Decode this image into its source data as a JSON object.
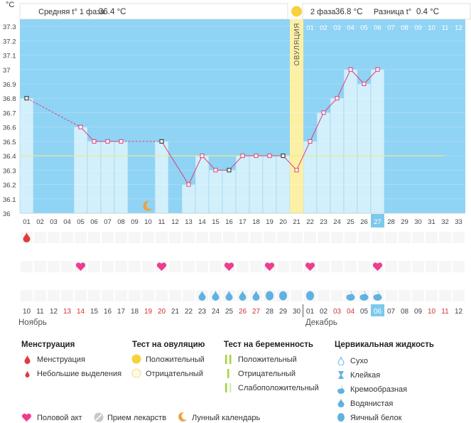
{
  "chart_data": {
    "type": "line",
    "title": "",
    "ylabel": "°C",
    "ylim": [
      36.0,
      37.35
    ],
    "y_ticks": [
      "37.3",
      "37.2",
      "37.1",
      "37",
      "36.9",
      "36.8",
      "36.7",
      "36.6",
      "36.5",
      "36.4",
      "36.3",
      "36.2",
      "36.1",
      "36"
    ],
    "y_tick_values": [
      37.3,
      37.2,
      37.1,
      37.0,
      36.9,
      36.8,
      36.7,
      36.6,
      36.5,
      36.4,
      36.3,
      36.2,
      36.1,
      36.0
    ],
    "cycle_days": [
      "01",
      "02",
      "03",
      "04",
      "05",
      "06",
      "07",
      "08",
      "09",
      "10",
      "11",
      "12",
      "13",
      "14",
      "15",
      "16",
      "17",
      "18",
      "19",
      "20",
      "21",
      "22",
      "23",
      "24",
      "25",
      "26",
      "27",
      "28",
      "29",
      "30",
      "31",
      "32",
      "33"
    ],
    "phase2_days": [
      "01",
      "02",
      "03",
      "04",
      "05",
      "06",
      "07",
      "08",
      "09",
      "10",
      "11",
      "12"
    ],
    "current_day": "27",
    "ovulation_day": "21",
    "ovulation_label": "ОВУЛЯЦИЯ",
    "coverline": 36.4,
    "temperatures": [
      36.8,
      null,
      null,
      null,
      36.6,
      36.5,
      36.5,
      36.5,
      null,
      null,
      36.5,
      null,
      36.2,
      36.4,
      36.3,
      36.3,
      36.4,
      36.4,
      36.4,
      36.4,
      36.3,
      36.5,
      36.7,
      36.8,
      37.0,
      36.9,
      37.0
    ],
    "excluded_days": [
      1,
      11,
      16,
      20
    ],
    "dashed_after": [
      1,
      8
    ],
    "phase1": {
      "label": "Средняя t° 1 фаза",
      "value": "36.4 °C"
    },
    "phase2": {
      "label": "2 фаза",
      "value": "36.8 °C"
    },
    "difference": {
      "label": "Разница t°",
      "value": "0.4 °C"
    },
    "calendar_dates": [
      "10",
      "11",
      "12",
      "13",
      "14",
      "15",
      "16",
      "17",
      "18",
      "19",
      "20",
      "21",
      "22",
      "23",
      "24",
      "25",
      "26",
      "27",
      "28",
      "29",
      "30",
      "01",
      "02",
      "03",
      "04",
      "05",
      "06",
      "07",
      "08",
      "09",
      "10",
      "11",
      "12"
    ],
    "weekend_indices": [
      3,
      4,
      9,
      10,
      16,
      17,
      23,
      24,
      30,
      31
    ],
    "month_start": "Ноябрь",
    "month_next": "Декабрь",
    "today_date": "06"
  },
  "markers": {
    "menstruation_days": [
      1
    ],
    "intercourse_days": [
      5,
      11,
      16,
      19,
      22,
      27
    ],
    "mucus": [
      {
        "day": 14,
        "type": "watery"
      },
      {
        "day": 15,
        "type": "watery"
      },
      {
        "day": 16,
        "type": "watery"
      },
      {
        "day": 17,
        "type": "watery"
      },
      {
        "day": 18,
        "type": "watery"
      },
      {
        "day": 19,
        "type": "eggwhite"
      },
      {
        "day": 20,
        "type": "eggwhite"
      },
      {
        "day": 22,
        "type": "eggwhite"
      },
      {
        "day": 25,
        "type": "creamy"
      },
      {
        "day": 26,
        "type": "creamy"
      },
      {
        "day": 27,
        "type": "creamy"
      }
    ],
    "moon_day": 10
  },
  "legend": {
    "menstruation": {
      "title": "Менструация",
      "items": [
        "Менструация",
        "Небольшие выделения"
      ]
    },
    "ovulation_test": {
      "title": "Тест на овуляцию",
      "items": [
        "Положительный",
        "Отрицательный"
      ]
    },
    "pregnancy_test": {
      "title": "Тест на беременность",
      "items": [
        "Положительный",
        "Отрицательный",
        "Слабоположительный"
      ]
    },
    "cervical_fluid": {
      "title": "Цервикальная жидкость",
      "items": [
        "Сухо",
        "Клейкая",
        "Кремообразная",
        "Водянистая",
        "Яичный белок"
      ]
    },
    "bottom": [
      "Половой акт",
      "Прием лекарств",
      "Лунный календарь"
    ]
  },
  "colors": {
    "sky": "#8fd3f5",
    "bar": "#d2effc",
    "bar_line": "#9ccfe6",
    "today": "#7dc8ec",
    "ovulation": "#fbf0a4",
    "coverline": "#e8eb8c",
    "temp_line": "#e03c78",
    "red": "#e03c3c",
    "heart": "#ee3d8f",
    "drop": "#5fb1e2",
    "yellow": "#f7d23c"
  }
}
